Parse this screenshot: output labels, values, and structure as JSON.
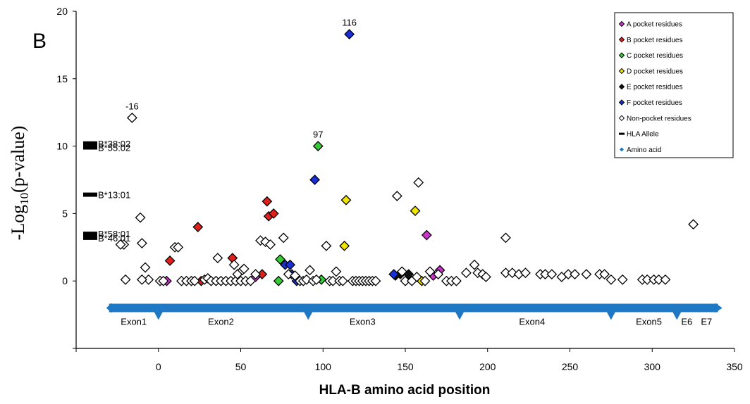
{
  "chart_data": {
    "type": "scatter",
    "panel_label": "B",
    "xlabel": "HLA-B amino acid position",
    "ylabel_main": "-Log",
    "ylabel_sub": "10",
    "ylabel_tail": "(p-value)",
    "xlim": [
      -50,
      350
    ],
    "ylim": [
      -5,
      20
    ],
    "xticks": [
      0,
      50,
      100,
      150,
      200,
      250,
      300,
      350
    ],
    "yticks": [
      0,
      5,
      10,
      15,
      20
    ],
    "legend_position": "top-right",
    "colors": {
      "A": "#cc33cc",
      "B": "#e0201a",
      "C": "#33cc33",
      "D": "#f2e600",
      "E": "#111111",
      "F": "#1a2fd6",
      "N": "#ffffff",
      "allele": "#000000",
      "amino": "#1f78c4"
    },
    "legend": [
      {
        "key": "A",
        "label": "A pocket residues"
      },
      {
        "key": "B",
        "label": "B pocket residues"
      },
      {
        "key": "C",
        "label": "C pocket residues"
      },
      {
        "key": "D",
        "label": "D pocket residues"
      },
      {
        "key": "E",
        "label": "E pocket residues"
      },
      {
        "key": "F",
        "label": "F pocket residues"
      },
      {
        "key": "N",
        "label": "Non-pocket residues"
      },
      {
        "key": "allele",
        "label": "HLA Allele"
      },
      {
        "key": "amino",
        "label": "Amino acid"
      }
    ],
    "alleles": [
      {
        "name": "B*38:02",
        "y": 10.2
      },
      {
        "name": "B*55:02",
        "y": 9.9
      },
      {
        "name": "B*13:01",
        "y": 6.4
      },
      {
        "name": "B*58:01",
        "y": 3.5
      },
      {
        "name": "B*46:01",
        "y": 3.2
      }
    ],
    "annotations": [
      {
        "text": "116",
        "x": 116,
        "y": 18.3
      },
      {
        "text": "-16",
        "x": -16,
        "y": 12.1
      },
      {
        "text": "97",
        "x": 97,
        "y": 10.0
      }
    ],
    "exon_track": {
      "y": -2.0,
      "x_range": [
        -30,
        340
      ],
      "boundaries": [
        0,
        91,
        183,
        275,
        315
      ],
      "labels": [
        {
          "text": "Exon1",
          "x": -15
        },
        {
          "text": "Exon2",
          "x": 38
        },
        {
          "text": "Exon3",
          "x": 124
        },
        {
          "text": "Exon4",
          "x": 227
        },
        {
          "text": "Exon5",
          "x": 298
        },
        {
          "text": "E6",
          "x": 321
        },
        {
          "text": "E7",
          "x": 333
        }
      ]
    },
    "series": [
      {
        "type": "A",
        "name": "A pocket residues",
        "points": [
          [
            5,
            0
          ],
          [
            59,
            0.3
          ],
          [
            163,
            3.4
          ],
          [
            167,
            0.4
          ],
          [
            171,
            0.8
          ]
        ]
      },
      {
        "type": "B",
        "name": "B pocket residues",
        "points": [
          [
            7,
            1.5
          ],
          [
            24,
            4.0
          ],
          [
            26,
            0
          ],
          [
            45,
            1.7
          ],
          [
            63,
            0.5
          ],
          [
            66,
            5.9
          ],
          [
            67,
            4.8
          ],
          [
            70,
            5.0
          ]
        ]
      },
      {
        "type": "C",
        "name": "C pocket residues",
        "points": [
          [
            74,
            1.6
          ],
          [
            73,
            0
          ],
          [
            97,
            10.0
          ],
          [
            99,
            0.1
          ]
        ]
      },
      {
        "type": "D",
        "name": "D pocket residues",
        "points": [
          [
            114,
            6.0
          ],
          [
            113,
            2.6
          ],
          [
            156,
            5.2
          ],
          [
            160,
            0
          ]
        ]
      },
      {
        "type": "E",
        "name": "E pocket residues",
        "points": [
          [
            147,
            0.5
          ],
          [
            152,
            0.5
          ],
          [
            144,
            0.4
          ]
        ]
      },
      {
        "type": "F",
        "name": "F pocket residues",
        "points": [
          [
            116,
            18.3
          ],
          [
            95,
            7.5
          ],
          [
            77,
            1.2
          ],
          [
            80,
            1.2
          ],
          [
            81,
            0.5
          ],
          [
            84,
            0
          ],
          [
            143,
            0.5
          ]
        ]
      },
      {
        "type": "N",
        "name": "Non-pocket residues",
        "points": [
          [
            -16,
            12.1
          ],
          [
            -11,
            4.7
          ],
          [
            -10,
            2.8
          ],
          [
            -21,
            2.7
          ],
          [
            -23,
            2.7
          ],
          [
            -20,
            0.1
          ],
          [
            -8,
            1.0
          ],
          [
            -6,
            0.1
          ],
          [
            -10,
            0.1
          ],
          [
            10,
            2.5
          ],
          [
            12,
            2.5
          ],
          [
            1,
            0
          ],
          [
            3,
            0
          ],
          [
            14,
            0
          ],
          [
            17,
            0
          ],
          [
            20,
            0
          ],
          [
            22,
            0
          ],
          [
            28,
            0.1
          ],
          [
            30,
            0.2
          ],
          [
            32,
            0
          ],
          [
            35,
            0
          ],
          [
            38,
            0
          ],
          [
            41,
            0
          ],
          [
            44,
            0
          ],
          [
            47,
            0
          ],
          [
            50,
            0
          ],
          [
            53,
            0
          ],
          [
            56,
            0
          ],
          [
            36,
            1.7
          ],
          [
            46,
            1.2
          ],
          [
            48,
            0.5
          ],
          [
            51,
            0.8
          ],
          [
            52,
            0.9
          ],
          [
            59,
            0.5
          ],
          [
            62,
            3.0
          ],
          [
            65,
            2.9
          ],
          [
            68,
            2.7
          ],
          [
            76,
            3.2
          ],
          [
            79,
            0.5
          ],
          [
            83,
            0.4
          ],
          [
            86,
            0
          ],
          [
            88,
            0
          ],
          [
            90,
            0.1
          ],
          [
            92,
            0.8
          ],
          [
            94,
            0
          ],
          [
            96,
            0.1
          ],
          [
            102,
            2.6
          ],
          [
            104,
            0
          ],
          [
            106,
            0
          ],
          [
            108,
            0.7
          ],
          [
            110,
            0
          ],
          [
            112,
            0
          ],
          [
            118,
            0
          ],
          [
            120,
            0
          ],
          [
            122,
            0
          ],
          [
            124,
            0
          ],
          [
            126,
            0
          ],
          [
            128,
            0
          ],
          [
            130,
            0
          ],
          [
            132,
            0
          ],
          [
            145,
            6.3
          ],
          [
            158,
            7.3
          ],
          [
            148,
            0.7
          ],
          [
            150,
            0
          ],
          [
            154,
            0
          ],
          [
            157,
            0.3
          ],
          [
            162,
            0
          ],
          [
            165,
            0.7
          ],
          [
            170,
            0.5
          ],
          [
            175,
            0
          ],
          [
            178,
            0
          ],
          [
            181,
            0
          ],
          [
            187,
            0.6
          ],
          [
            192,
            1.2
          ],
          [
            194,
            0.6
          ],
          [
            197,
            0.5
          ],
          [
            199,
            0.3
          ],
          [
            211,
            3.2
          ],
          [
            211,
            0.6
          ],
          [
            215,
            0.6
          ],
          [
            219,
            0.5
          ],
          [
            223,
            0.6
          ],
          [
            232,
            0.5
          ],
          [
            235,
            0.5
          ],
          [
            239,
            0.5
          ],
          [
            245,
            0.3
          ],
          [
            249,
            0.5
          ],
          [
            253,
            0.5
          ],
          [
            260,
            0.5
          ],
          [
            268,
            0.5
          ],
          [
            271,
            0.5
          ],
          [
            275,
            0.1
          ],
          [
            282,
            0.1
          ],
          [
            294,
            0.1
          ],
          [
            297,
            0.1
          ],
          [
            301,
            0.1
          ],
          [
            304,
            0.1
          ],
          [
            308,
            0.1
          ],
          [
            325,
            4.2
          ]
        ]
      }
    ]
  }
}
